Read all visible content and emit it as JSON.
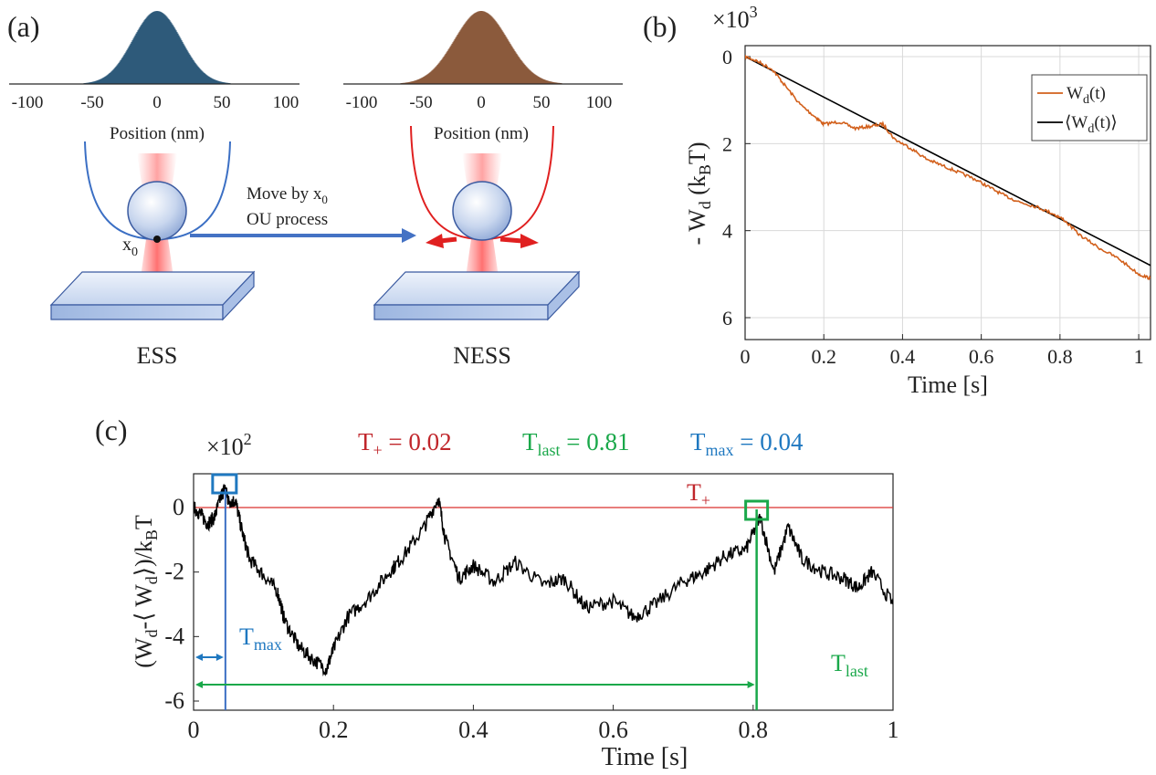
{
  "panel_labels": {
    "a": "(a)",
    "b": "(b)",
    "c": "(c)"
  },
  "colors": {
    "ess": "#3b6fc4",
    "ness": "#e02020",
    "hist_ess": "#2e5a7a",
    "hist_ness": "#8b5a3c",
    "trace_b": "#d2601c",
    "mean_b": "#000000",
    "t_plus": "#c0262b",
    "t_last": "#1aa84a",
    "t_max": "#1f78c0",
    "arrow": "#4472c4"
  },
  "panel_a": {
    "hist_ess_xlabel": "Position (nm)",
    "hist_ness_xlabel": "Position (nm)",
    "hist_ticks": [
      "-100",
      "-50",
      "0",
      "50",
      "100"
    ],
    "x0_label": "x",
    "x0_sub": "0",
    "arrow_line1_text": "Move by x",
    "arrow_line1_sub": "0",
    "arrow_line2": "OU process",
    "ess_label": "ESS",
    "ness_label": "NESS"
  },
  "panel_b": {
    "multiplier_base": "×10",
    "multiplier_exp": "3",
    "xlabel": "Time [s]",
    "ylabel_main": "- W",
    "ylabel_sub_d": "d",
    "ylabel_k": " (k",
    "ylabel_sub_B": "B",
    "ylabel_end": "T)",
    "legend_trace_main": "W",
    "legend_trace_sub": "d",
    "legend_trace_end": "(t)",
    "legend_mean_open": "⟨W",
    "legend_mean_sub": "d",
    "legend_mean_end": "(t)⟩"
  },
  "panel_c": {
    "multiplier_base": "×10",
    "multiplier_exp": "2",
    "xlabel": "Time [s]",
    "ylabel_open": "(W",
    "ylabel_sub_d": "d",
    "ylabel_mid": "-⟨ W",
    "ylabel_sub_d2": "d",
    "ylabel_close": "⟩)/k",
    "ylabel_sub_B": "B",
    "ylabel_T": "T",
    "header_tplus_main": "T",
    "header_tplus_sub": "+",
    "header_tplus_val": " = 0.02",
    "header_tlast_main": "T",
    "header_tlast_sub": "last",
    "header_tlast_val": " = 0.81",
    "header_tmax_main": "T",
    "header_tmax_sub": "max",
    "header_tmax_val": " = 0.04",
    "line_label_main": "T",
    "line_label_sub": "+",
    "tmax_label_main": "T",
    "tmax_label_sub": "max",
    "tlast_label_main": "T",
    "tlast_label_sub": "last"
  },
  "chart_data": [
    {
      "type": "line",
      "panel": "b",
      "xlabel": "Time [s]",
      "ylabel": "- W_d (k_B T)",
      "multiplier": "×10^3",
      "xlim": [
        0,
        1.03
      ],
      "ylim": [
        0,
        6.3
      ],
      "y_reversed": true,
      "xticks": [
        0,
        0.2,
        0.4,
        0.6,
        0.8,
        1
      ],
      "yticks": [
        0,
        2,
        4,
        6
      ],
      "grid": true,
      "legend_position": "top-right",
      "series": [
        {
          "name": "W_d(t)",
          "x": [
            0,
            0.03,
            0.07,
            0.1,
            0.14,
            0.18,
            0.2,
            0.24,
            0.28,
            0.32,
            0.35,
            0.38,
            0.42,
            0.46,
            0.5,
            0.54,
            0.58,
            0.62,
            0.66,
            0.7,
            0.74,
            0.78,
            0.81,
            0.85,
            0.9,
            0.95,
            1.0,
            1.03
          ],
          "y": [
            0,
            0.1,
            0.3,
            0.65,
            1.1,
            1.4,
            1.55,
            1.5,
            1.65,
            1.6,
            1.55,
            1.9,
            2.1,
            2.35,
            2.5,
            2.65,
            2.8,
            3.0,
            3.2,
            3.35,
            3.45,
            3.6,
            3.75,
            4.1,
            4.4,
            4.65,
            5.0,
            5.1
          ]
        },
        {
          "name": "⟨W_d(t)⟩",
          "x": [
            0,
            1.03
          ],
          "y": [
            0,
            4.8
          ]
        }
      ]
    },
    {
      "type": "line",
      "panel": "c",
      "xlabel": "Time [s]",
      "ylabel": "(W_d-⟨ W_d⟩)/k_B T",
      "multiplier": "×10^2",
      "xlim": [
        0,
        1
      ],
      "ylim": [
        -6.3,
        1.1
      ],
      "xticks": [
        0,
        0.2,
        0.4,
        0.6,
        0.8,
        1
      ],
      "yticks": [
        0,
        -2,
        -4,
        -6
      ],
      "grid": false,
      "annotations": {
        "T_plus": 0.02,
        "T_last": 0.81,
        "T_max": 0.04
      },
      "series": [
        {
          "name": "",
          "x": [
            0,
            0.01,
            0.02,
            0.03,
            0.04,
            0.045,
            0.05,
            0.06,
            0.07,
            0.08,
            0.1,
            0.12,
            0.13,
            0.15,
            0.17,
            0.19,
            0.2,
            0.22,
            0.25,
            0.28,
            0.3,
            0.33,
            0.35,
            0.36,
            0.38,
            0.4,
            0.43,
            0.46,
            0.5,
            0.53,
            0.56,
            0.6,
            0.63,
            0.66,
            0.7,
            0.73,
            0.76,
            0.79,
            0.81,
            0.83,
            0.85,
            0.87,
            0.9,
            0.93,
            0.95,
            0.97,
            1.0
          ],
          "y": [
            0,
            -0.2,
            -0.5,
            -0.3,
            0.4,
            0.6,
            0.2,
            0.2,
            -0.8,
            -1.6,
            -2.1,
            -2.6,
            -3.5,
            -4.3,
            -4.7,
            -5.0,
            -4.4,
            -3.4,
            -2.8,
            -2.0,
            -1.5,
            -0.6,
            0.3,
            -1.0,
            -2.2,
            -1.8,
            -2.3,
            -1.7,
            -2.4,
            -2.2,
            -3.1,
            -2.9,
            -3.4,
            -3.0,
            -2.3,
            -2.0,
            -1.5,
            -1.3,
            -0.3,
            -2.0,
            -0.6,
            -1.6,
            -2.0,
            -2.2,
            -2.5,
            -2.0,
            -3.0
          ]
        }
      ]
    }
  ]
}
